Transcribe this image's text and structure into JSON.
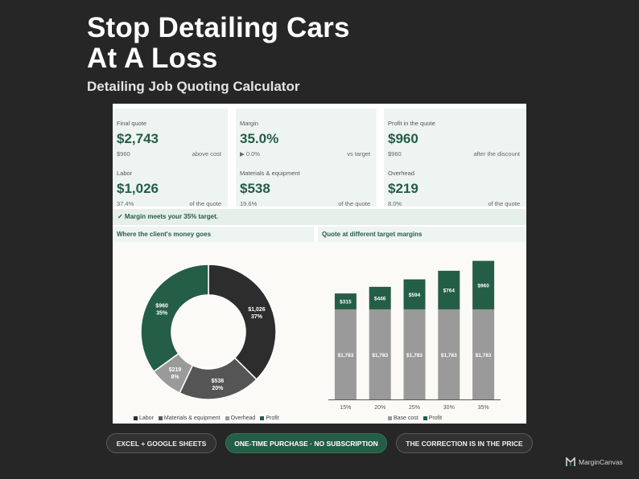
{
  "hero": {
    "title": "Stop Detailing Cars\nAt A Loss",
    "subtitle": "Detailing Job Quoting Calculator"
  },
  "kpis": [
    {
      "label": "Final quote",
      "value": "$2,743",
      "sub": "$960",
      "note": "above cost"
    },
    {
      "label": "Margin",
      "value": "35.0%",
      "sub": "▶ 0.0%",
      "note": "vs target"
    },
    {
      "label": "Profit in the quote",
      "value": "$960",
      "sub": "$960",
      "note": "after the discount"
    },
    {
      "label": "Labor",
      "value": "$1,026",
      "sub": "37.4%",
      "note": "of the quote"
    },
    {
      "label": "Materials & equipment",
      "value": "$538",
      "sub": "19.6%",
      "note": "of the quote"
    },
    {
      "label": "Overhead",
      "value": "$219",
      "sub": "8.0%",
      "note": "of the quote"
    }
  ],
  "banner": "✓ Margin meets your 35% target.",
  "sections": {
    "donut_title": "Where the client's money goes",
    "bar_title": "Quote at different target margins"
  },
  "colors": {
    "labor": "#2d2d2d",
    "materials": "#555555",
    "overhead": "#9a9a9a",
    "profit": "#245e46",
    "base": "#9a9a9a"
  },
  "chart_data": [
    {
      "type": "pie",
      "title": "Where the client's money goes",
      "slices": [
        {
          "name": "Labor",
          "value": 1026,
          "label": "$1,026",
          "pct": "37%"
        },
        {
          "name": "Materials & equipment",
          "value": 538,
          "label": "$538",
          "pct": "20%"
        },
        {
          "name": "Overhead",
          "value": 219,
          "label": "$219",
          "pct": "8%"
        },
        {
          "name": "Profit",
          "value": 960,
          "label": "$960",
          "pct": "35%"
        }
      ],
      "legend": "bottom"
    },
    {
      "type": "bar",
      "title": "Quote at different target margins",
      "categories": [
        "15%",
        "20%",
        "25%",
        "30%",
        "35%"
      ],
      "series": [
        {
          "name": "Base cost",
          "values": [
            1783,
            1783,
            1783,
            1783,
            1783
          ],
          "labels": [
            "$1,783",
            "$1,783",
            "$1,783",
            "$1,783",
            "$1,783"
          ]
        },
        {
          "name": "Profit",
          "values": [
            315,
            446,
            594,
            764,
            960
          ],
          "labels": [
            "$315",
            "$446",
            "$594",
            "$764",
            "$960"
          ]
        }
      ],
      "stacked": true,
      "ylim": [
        0,
        2800
      ],
      "legend": "bottom"
    }
  ],
  "pills": [
    "EXCEL + GOOGLE SHEETS",
    "ONE-TIME PURCHASE · NO SUBSCRIPTION",
    "THE CORRECTION IS IN THE PRICE"
  ],
  "brand": {
    "name": "MarginCanvas"
  }
}
